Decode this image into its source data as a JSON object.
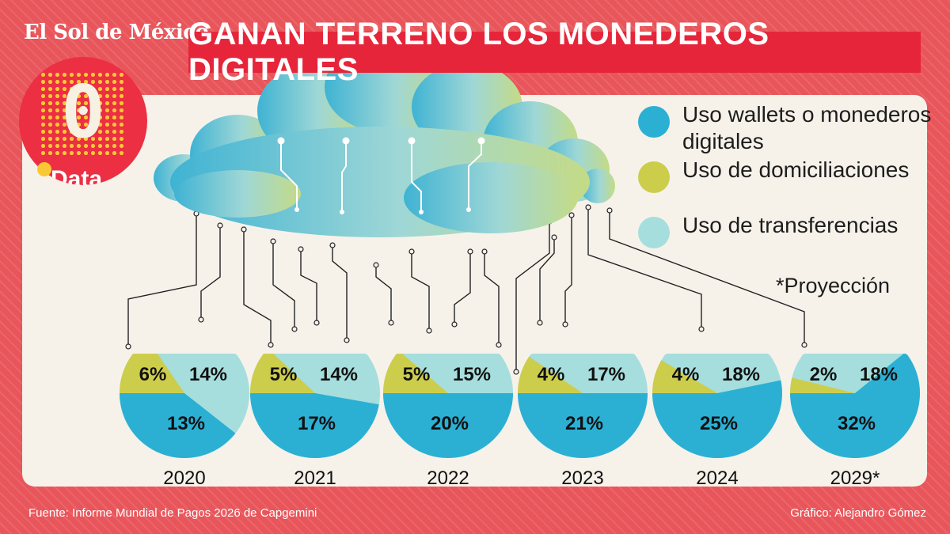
{
  "header": {
    "masthead": "El Sol de México",
    "title": "GANAN TERRENO LOS MONEDEROS DIGITALES",
    "badge_label": "Data",
    "badge_digit": "0"
  },
  "legend": {
    "wallets": "Uso wallets o monederos digitales",
    "domiciliaciones": "Uso de domiciliaciones",
    "transferencias": "Uso de transferencias",
    "note": "*Proyección"
  },
  "colors": {
    "wallets": "#2bb0d4",
    "domiciliaciones": "#cdcd4c",
    "transferencias": "#a6dedd",
    "background": "#e8555a",
    "title": "#e6253a"
  },
  "footer": {
    "source": "Fuente: Informe Mundial de Pagos 2026 de Capgemini",
    "credit": "Gráfico: Alejandro Gómez"
  },
  "chart_data": {
    "type": "pie",
    "title": "GANAN TERRENO LOS MONEDEROS DIGITALES",
    "series_names": [
      "Uso wallets o monederos digitales",
      "Uso de domiciliaciones",
      "Uso de transferencias"
    ],
    "charts": [
      {
        "year": "2020",
        "wallets": 13,
        "domiciliaciones": 6,
        "transferencias": 14
      },
      {
        "year": "2021",
        "wallets": 17,
        "domiciliaciones": 5,
        "transferencias": 14
      },
      {
        "year": "2022",
        "wallets": 20,
        "domiciliaciones": 5,
        "transferencias": 15
      },
      {
        "year": "2023",
        "wallets": 21,
        "domiciliaciones": 4,
        "transferencias": 17
      },
      {
        "year": "2024",
        "wallets": 25,
        "domiciliaciones": 4,
        "transferencias": 18
      },
      {
        "year": "2029*",
        "wallets": 32,
        "domiciliaciones": 2,
        "transferencias": 18
      }
    ],
    "note": "*Proyección"
  }
}
